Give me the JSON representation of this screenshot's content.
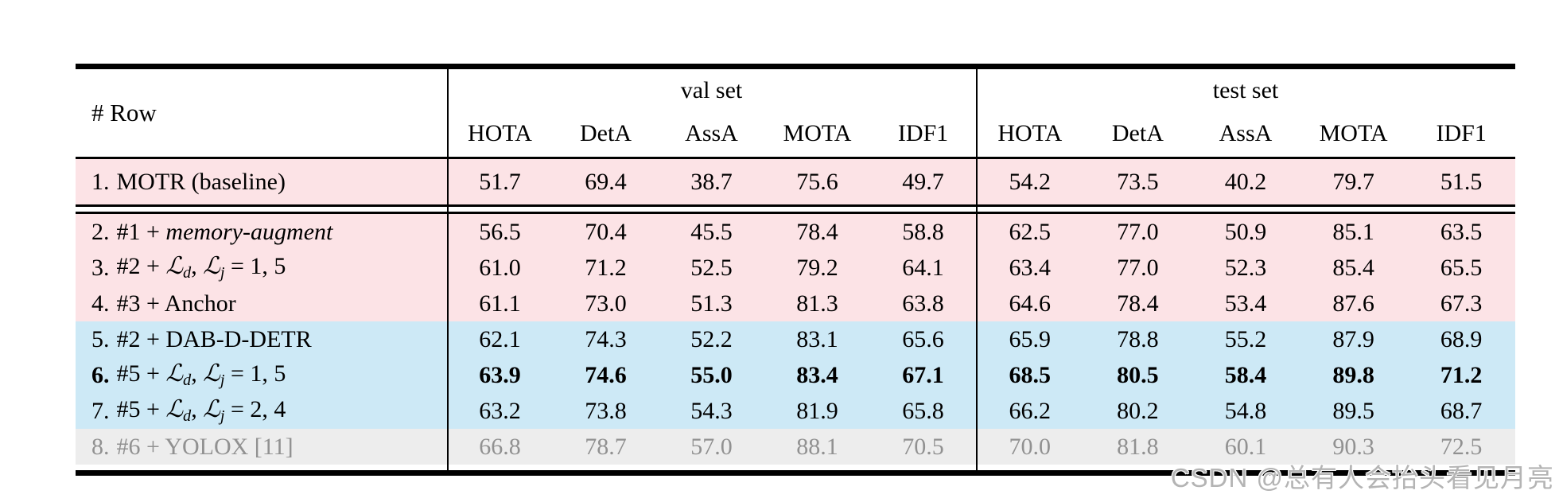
{
  "table": {
    "row_header": "# Row",
    "groups": [
      {
        "label": "val set"
      },
      {
        "label": "test set"
      }
    ],
    "columns": [
      "HOTA",
      "DetA",
      "AssA",
      "MOTA",
      "IDF1"
    ],
    "rows": [
      {
        "num": "1.",
        "bg": "pink",
        "bold": false,
        "label": [
          {
            "t": "MOTR (baseline)",
            "s": "rm"
          }
        ],
        "val": [
          "51.7",
          "69.4",
          "38.7",
          "75.6",
          "49.7"
        ],
        "test": [
          "54.2",
          "73.5",
          "40.2",
          "79.7",
          "51.5"
        ]
      },
      {
        "num": "2.",
        "bg": "pink",
        "bold": false,
        "label": [
          {
            "t": "#1 + ",
            "s": "rm"
          },
          {
            "t": "memory-augment",
            "s": "it"
          }
        ],
        "val": [
          "56.5",
          "70.4",
          "45.5",
          "78.4",
          "58.8"
        ],
        "test": [
          "62.5",
          "77.0",
          "50.9",
          "85.1",
          "63.5"
        ]
      },
      {
        "num": "3.",
        "bg": "pink",
        "bold": false,
        "label": [
          {
            "t": "#2 + ",
            "s": "rm"
          },
          {
            "t": "ℒ",
            "s": "cal"
          },
          {
            "t": "d",
            "s": "sub"
          },
          {
            "t": ", ",
            "s": "rm"
          },
          {
            "t": "ℒ",
            "s": "cal"
          },
          {
            "t": "j",
            "s": "sub"
          },
          {
            "t": " = 1, 5",
            "s": "rm"
          }
        ],
        "val": [
          "61.0",
          "71.2",
          "52.5",
          "79.2",
          "64.1"
        ],
        "test": [
          "63.4",
          "77.0",
          "52.3",
          "85.4",
          "65.5"
        ]
      },
      {
        "num": "4.",
        "bg": "pink",
        "bold": false,
        "label": [
          {
            "t": "#3 + Anchor",
            "s": "rm"
          }
        ],
        "val": [
          "61.1",
          "73.0",
          "51.3",
          "81.3",
          "63.8"
        ],
        "test": [
          "64.6",
          "78.4",
          "53.4",
          "87.6",
          "67.3"
        ]
      },
      {
        "num": "5.",
        "bg": "blue",
        "bold": false,
        "label": [
          {
            "t": "#2 + DAB-D-DETR",
            "s": "rm"
          }
        ],
        "val": [
          "62.1",
          "74.3",
          "52.2",
          "83.1",
          "65.6"
        ],
        "test": [
          "65.9",
          "78.8",
          "55.2",
          "87.9",
          "68.9"
        ]
      },
      {
        "num": "6.",
        "bg": "blue",
        "bold": true,
        "label": [
          {
            "t": "#5 + ",
            "s": "rm"
          },
          {
            "t": "ℒ",
            "s": "cal"
          },
          {
            "t": "d",
            "s": "sub"
          },
          {
            "t": ", ",
            "s": "rm"
          },
          {
            "t": "ℒ",
            "s": "cal"
          },
          {
            "t": "j",
            "s": "sub"
          },
          {
            "t": " = 1, 5",
            "s": "rm"
          }
        ],
        "val": [
          "63.9",
          "74.6",
          "55.0",
          "83.4",
          "67.1"
        ],
        "test": [
          "68.5",
          "80.5",
          "58.4",
          "89.8",
          "71.2"
        ]
      },
      {
        "num": "7.",
        "bg": "blue",
        "bold": false,
        "label": [
          {
            "t": "#5 + ",
            "s": "rm"
          },
          {
            "t": "ℒ",
            "s": "cal"
          },
          {
            "t": "d",
            "s": "sub"
          },
          {
            "t": ", ",
            "s": "rm"
          },
          {
            "t": "ℒ",
            "s": "cal"
          },
          {
            "t": "j",
            "s": "sub"
          },
          {
            "t": " = 2, 4",
            "s": "rm"
          }
        ],
        "val": [
          "63.2",
          "73.8",
          "54.3",
          "81.9",
          "65.8"
        ],
        "test": [
          "66.2",
          "80.2",
          "54.8",
          "89.5",
          "68.7"
        ]
      },
      {
        "num": "8.",
        "bg": "gray",
        "bold": false,
        "label": [
          {
            "t": "#6 + YOLOX [11]",
            "s": "rm"
          }
        ],
        "val": [
          "66.8",
          "78.7",
          "57.0",
          "88.1",
          "70.5"
        ],
        "test": [
          "70.0",
          "81.8",
          "60.1",
          "90.3",
          "72.5"
        ]
      }
    ]
  },
  "watermark": "CSDN @总有人会抬头看见月亮",
  "colors": {
    "row_pink": "#fce3e6",
    "row_blue": "#cde9f6",
    "row_gray": "#ededed",
    "gray_text": "#919191",
    "watermark": "#b4b4b4"
  }
}
